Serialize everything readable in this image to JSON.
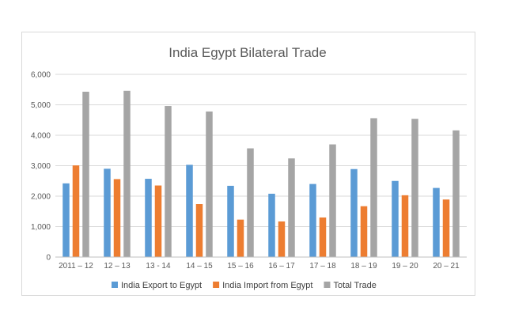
{
  "chart_data": {
    "type": "bar",
    "title": "India Egypt Bilateral Trade",
    "xlabel": "",
    "ylabel": "",
    "ylim": [
      0,
      6000
    ],
    "yticks": [
      "0",
      "1,000",
      "2,000",
      "3,000",
      "4,000",
      "5,000",
      "6,000"
    ],
    "categories": [
      "2011 – 12",
      "12 – 13",
      "13 - 14",
      "14 – 15",
      "15 – 16",
      "16 – 17",
      "17 – 18",
      "18 – 19",
      "19 – 20",
      "20 – 21"
    ],
    "series": [
      {
        "name": "India Export to Egypt",
        "color": "#5b9bd5",
        "values": [
          2420,
          2900,
          2570,
          3030,
          2340,
          2080,
          2400,
          2890,
          2500,
          2270
        ]
      },
      {
        "name": "India Import from Egypt",
        "color": "#ed7d31",
        "values": [
          3010,
          2560,
          2350,
          1740,
          1230,
          1170,
          1300,
          1670,
          2030,
          1890
        ]
      },
      {
        "name": "Total Trade",
        "color": "#a5a5a5",
        "values": [
          5430,
          5460,
          4960,
          4780,
          3570,
          3240,
          3700,
          4560,
          4540,
          4160
        ]
      }
    ],
    "grid": true,
    "legend_position": "bottom"
  }
}
